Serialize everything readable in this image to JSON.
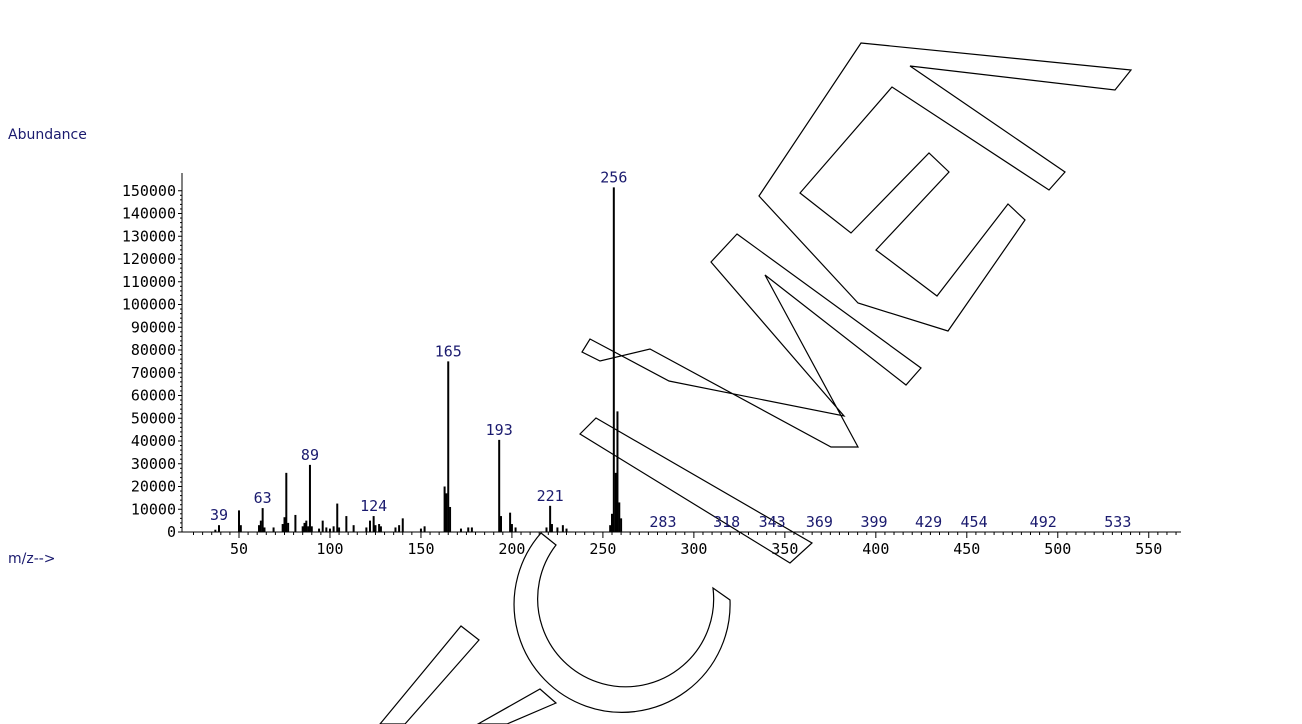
{
  "chart_data": {
    "type": "bar",
    "title": "",
    "ylabel": "Abundance",
    "xlabel": "m/z-->",
    "xlim": [
      21,
      568
    ],
    "ylim": [
      0,
      150000
    ],
    "yticks": [
      0,
      10000,
      20000,
      30000,
      40000,
      50000,
      60000,
      70000,
      80000,
      90000,
      100000,
      110000,
      120000,
      130000,
      140000,
      150000
    ],
    "xticks": [
      50,
      100,
      150,
      200,
      250,
      300,
      350,
      400,
      450,
      500,
      550
    ],
    "peaks": [
      {
        "mz": 37,
        "ab": 1000
      },
      {
        "mz": 39,
        "ab": 3000
      },
      {
        "mz": 50,
        "ab": 9500
      },
      {
        "mz": 51,
        "ab": 3000
      },
      {
        "mz": 61,
        "ab": 3000
      },
      {
        "mz": 62,
        "ab": 5000
      },
      {
        "mz": 63,
        "ab": 10500
      },
      {
        "mz": 64,
        "ab": 2000
      },
      {
        "mz": 69,
        "ab": 2000
      },
      {
        "mz": 74,
        "ab": 3500
      },
      {
        "mz": 75,
        "ab": 6500
      },
      {
        "mz": 76,
        "ab": 26000
      },
      {
        "mz": 77,
        "ab": 4000
      },
      {
        "mz": 81,
        "ab": 7500
      },
      {
        "mz": 85,
        "ab": 2500
      },
      {
        "mz": 86,
        "ab": 4000
      },
      {
        "mz": 87,
        "ab": 5000
      },
      {
        "mz": 88,
        "ab": 2500
      },
      {
        "mz": 89,
        "ab": 29500
      },
      {
        "mz": 90,
        "ab": 2500
      },
      {
        "mz": 94,
        "ab": 1500
      },
      {
        "mz": 96,
        "ab": 5000
      },
      {
        "mz": 98,
        "ab": 2000
      },
      {
        "mz": 100,
        "ab": 1500
      },
      {
        "mz": 102,
        "ab": 2500
      },
      {
        "mz": 104,
        "ab": 12500
      },
      {
        "mz": 105,
        "ab": 2000
      },
      {
        "mz": 109,
        "ab": 7000
      },
      {
        "mz": 113,
        "ab": 3000
      },
      {
        "mz": 120,
        "ab": 2000
      },
      {
        "mz": 122,
        "ab": 5000
      },
      {
        "mz": 124,
        "ab": 7000
      },
      {
        "mz": 125,
        "ab": 3000
      },
      {
        "mz": 127,
        "ab": 3500
      },
      {
        "mz": 128,
        "ab": 2500
      },
      {
        "mz": 136,
        "ab": 2000
      },
      {
        "mz": 138,
        "ab": 3000
      },
      {
        "mz": 140,
        "ab": 6000
      },
      {
        "mz": 150,
        "ab": 1500
      },
      {
        "mz": 152,
        "ab": 2500
      },
      {
        "mz": 163,
        "ab": 20000
      },
      {
        "mz": 164,
        "ab": 17000
      },
      {
        "mz": 165,
        "ab": 75000
      },
      {
        "mz": 166,
        "ab": 11000
      },
      {
        "mz": 172,
        "ab": 1500
      },
      {
        "mz": 176,
        "ab": 2000
      },
      {
        "mz": 178,
        "ab": 2000
      },
      {
        "mz": 193,
        "ab": 40500
      },
      {
        "mz": 194,
        "ab": 7000
      },
      {
        "mz": 199,
        "ab": 8500
      },
      {
        "mz": 200,
        "ab": 3500
      },
      {
        "mz": 202,
        "ab": 2000
      },
      {
        "mz": 219,
        "ab": 2000
      },
      {
        "mz": 221,
        "ab": 11500
      },
      {
        "mz": 222,
        "ab": 3500
      },
      {
        "mz": 225,
        "ab": 2000
      },
      {
        "mz": 228,
        "ab": 3000
      },
      {
        "mz": 230,
        "ab": 1500
      },
      {
        "mz": 254,
        "ab": 3000
      },
      {
        "mz": 255,
        "ab": 8000
      },
      {
        "mz": 256,
        "ab": 151500
      },
      {
        "mz": 257,
        "ab": 26000
      },
      {
        "mz": 258,
        "ab": 53000
      },
      {
        "mz": 259,
        "ab": 13000
      },
      {
        "mz": 260,
        "ab": 6000
      }
    ],
    "peak_labels": [
      {
        "mz": 39,
        "text": "39",
        "ab": 3000
      },
      {
        "mz": 63,
        "text": "63",
        "ab": 10500
      },
      {
        "mz": 89,
        "text": "89",
        "ab": 29500
      },
      {
        "mz": 124,
        "text": "124",
        "ab": 7000
      },
      {
        "mz": 165,
        "text": "165",
        "ab": 75000
      },
      {
        "mz": 193,
        "text": "193",
        "ab": 40500
      },
      {
        "mz": 221,
        "text": "221",
        "ab": 11500
      },
      {
        "mz": 256,
        "text": "256",
        "ab": 151500
      },
      {
        "mz": 283,
        "text": "283",
        "ab": 0
      },
      {
        "mz": 318,
        "text": "318",
        "ab": 0
      },
      {
        "mz": 343,
        "text": "343",
        "ab": 0
      },
      {
        "mz": 369,
        "text": "369",
        "ab": 0
      },
      {
        "mz": 399,
        "text": "399",
        "ab": 0
      },
      {
        "mz": 429,
        "text": "429",
        "ab": 0
      },
      {
        "mz": 454,
        "text": "454",
        "ab": 0
      },
      {
        "mz": 492,
        "text": "492",
        "ab": 0
      },
      {
        "mz": 533,
        "text": "533",
        "ab": 0
      }
    ]
  },
  "watermark_text": "ICIMEN"
}
